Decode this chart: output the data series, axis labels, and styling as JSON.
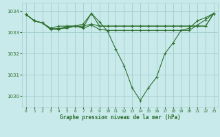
{
  "title": "Graphe pression niveau de la mer (hPa)",
  "background_color": "#c8eaea",
  "grid_color": "#a8d0d0",
  "line_color": "#2d6e2d",
  "marker_color": "#2d6e2d",
  "ylim": [
    1029.5,
    1034.4
  ],
  "yticks": [
    1030,
    1031,
    1032,
    1033,
    1034
  ],
  "xticks": [
    0,
    1,
    2,
    3,
    4,
    5,
    6,
    7,
    8,
    9,
    10,
    11,
    12,
    13,
    14,
    15,
    16,
    17,
    18,
    19,
    20,
    21,
    22,
    23
  ],
  "series": [
    [
      1033.85,
      1033.55,
      1033.45,
      1033.2,
      1033.3,
      1033.3,
      1033.3,
      1033.4,
      1033.9,
      1033.5,
      1033.05,
      1032.2,
      1031.45,
      1030.4,
      1029.8,
      1030.4,
      1030.9,
      1032.0,
      1032.5,
      1033.1,
      1033.2,
      1033.55,
      1033.7,
      1033.9
    ],
    [
      1033.85,
      1033.55,
      1033.45,
      1033.2,
      1033.15,
      1033.3,
      1033.3,
      1033.3,
      1033.4,
      1033.3,
      1033.3,
      1033.3,
      1033.3,
      1033.3,
      1033.3,
      1033.3,
      1033.3,
      1033.3,
      1033.3,
      1033.3,
      1033.3,
      1033.3,
      1033.3,
      1033.9
    ],
    [
      1033.85,
      1033.55,
      1033.45,
      1033.15,
      1033.15,
      1033.25,
      1033.3,
      1033.25,
      1033.9,
      1033.3,
      1033.3,
      1033.3,
      1033.3,
      1033.3,
      1033.3,
      1033.3,
      1033.3,
      1033.3,
      1033.3,
      1033.3,
      1033.3,
      1033.3,
      1033.3,
      1033.9
    ],
    [
      1033.85,
      1033.55,
      1033.45,
      1033.15,
      1033.2,
      1033.2,
      1033.3,
      1033.2,
      1033.35,
      1033.15,
      1033.1,
      1033.1,
      1033.1,
      1033.1,
      1033.1,
      1033.1,
      1033.1,
      1033.1,
      1033.1,
      1033.1,
      1033.1,
      1033.35,
      1033.6,
      1033.9
    ]
  ]
}
